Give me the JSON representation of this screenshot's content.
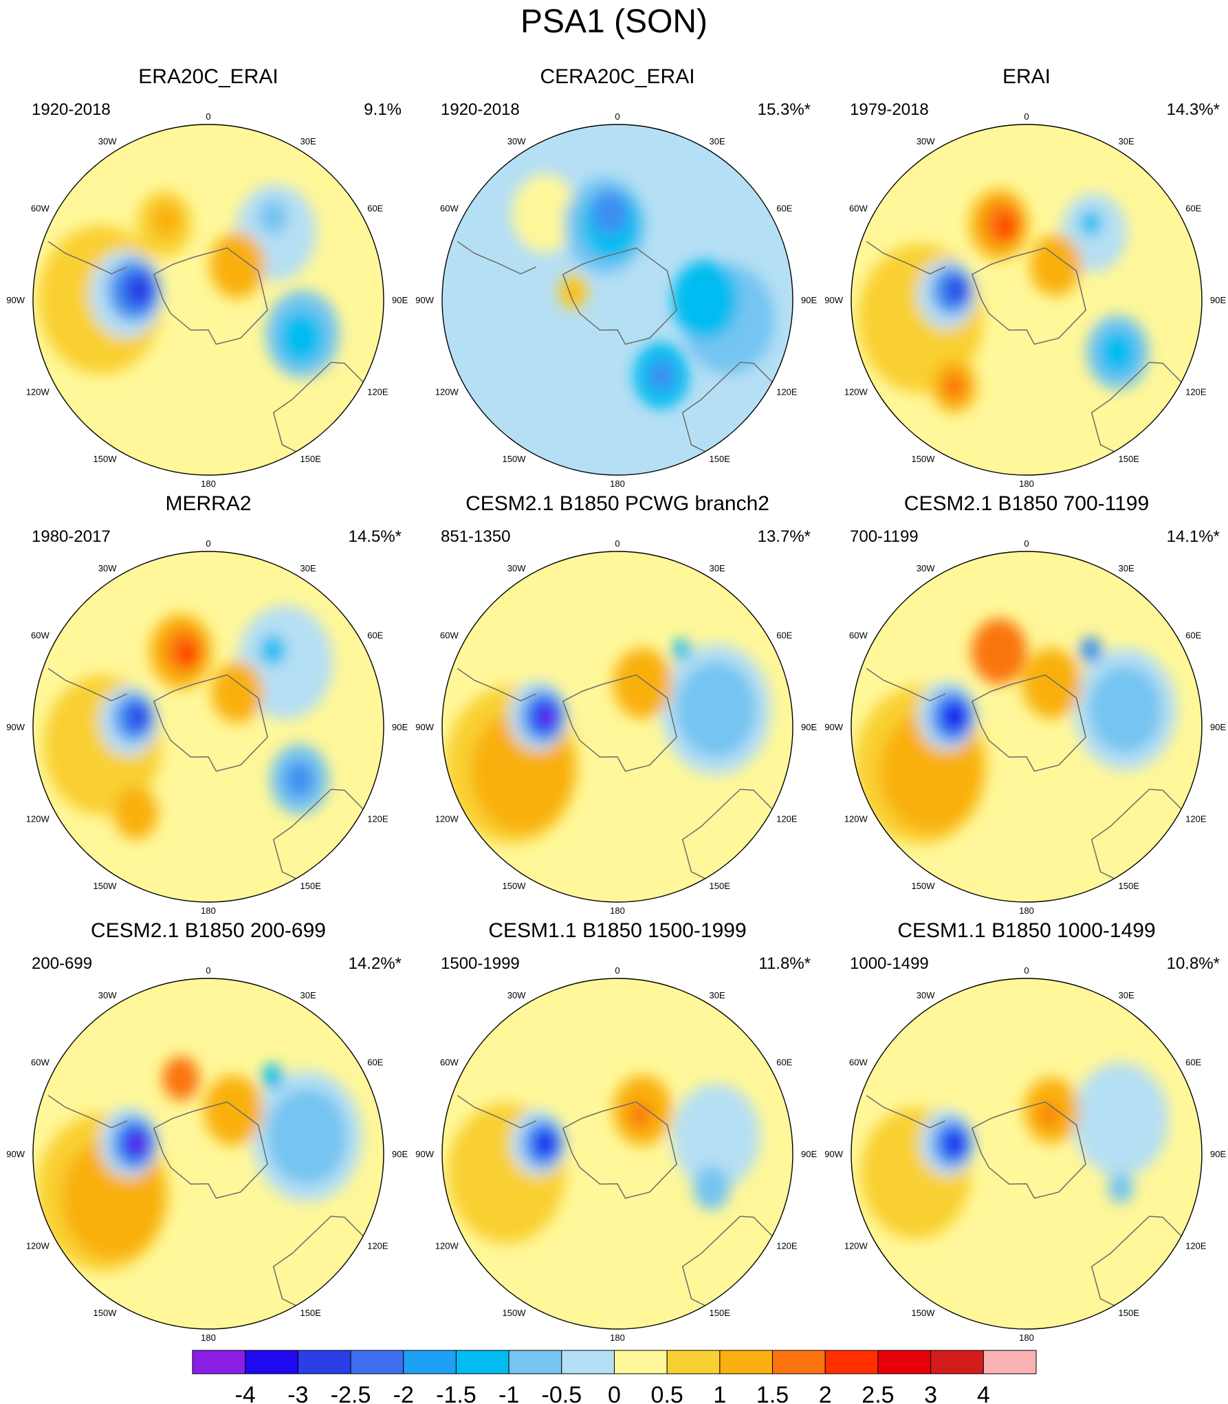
{
  "title": "PSA1 (SON)",
  "lon_labels": [
    "0",
    "30E",
    "60E",
    "90E",
    "120E",
    "150E",
    "180",
    "150W",
    "120W",
    "90W",
    "60W",
    "30W"
  ],
  "panels": [
    {
      "title": "ERA20C_ERAI",
      "period": "1920-2018",
      "pct": "9.1%",
      "bg": "#fff799",
      "features": [
        {
          "lat": -47,
          "lon": -90,
          "r": 0.34,
          "color": "#f9d033"
        },
        {
          "lat": -57,
          "lon": -86,
          "r": 0.2,
          "color": "#b5dff4"
        },
        {
          "lat": -60,
          "lon": -83,
          "r": 0.14,
          "color": "#3e8ef0"
        },
        {
          "lat": -62,
          "lon": -82,
          "r": 0.08,
          "color": "#2a3ee6"
        },
        {
          "lat": -55,
          "lon": -30,
          "r": 0.15,
          "color": "#f9d033"
        },
        {
          "lat": -54,
          "lon": -28,
          "r": 0.08,
          "color": "#f9b010"
        },
        {
          "lat": -52,
          "lon": 45,
          "r": 0.22,
          "color": "#b5dff4"
        },
        {
          "lat": -48,
          "lon": 38,
          "r": 0.08,
          "color": "#75c4f1"
        },
        {
          "lat": -50,
          "lon": 110,
          "r": 0.2,
          "color": "#75c4f1"
        },
        {
          "lat": -50,
          "lon": 112,
          "r": 0.12,
          "color": "#00bcf0"
        },
        {
          "lat": -72,
          "lon": 40,
          "r": 0.15,
          "color": "#f9b010"
        }
      ]
    },
    {
      "title": "CERA20C_ERAI",
      "period": "1920-2018",
      "pct": "15.3%*",
      "bg": "#b5dff4",
      "features": [
        {
          "lat": -45,
          "lon": -40,
          "r": 0.18,
          "color": "#fff799"
        },
        {
          "lat": -45,
          "lon": 100,
          "r": 0.25,
          "color": "#75c4f1"
        },
        {
          "lat": -60,
          "lon": -10,
          "r": 0.22,
          "color": "#75c4f1"
        },
        {
          "lat": -60,
          "lon": -5,
          "r": 0.16,
          "color": "#00bcf0"
        },
        {
          "lat": -55,
          "lon": -5,
          "r": 0.1,
          "color": "#3e8ef0"
        },
        {
          "lat": -55,
          "lon": 90,
          "r": 0.18,
          "color": "#00bcf0"
        },
        {
          "lat": -55,
          "lon": 150,
          "r": 0.15,
          "color": "#00bcf0"
        },
        {
          "lat": -55,
          "lon": 150,
          "r": 0.07,
          "color": "#3e8ef0"
        },
        {
          "lat": -72,
          "lon": -80,
          "r": 0.08,
          "color": "#f9d033"
        },
        {
          "lat": -72,
          "lon": -80,
          "r": 0.04,
          "color": "#f9b010"
        }
      ]
    },
    {
      "title": "ERAI",
      "period": "1979-2018",
      "pct": "14.3%*",
      "bg": "#fff799",
      "features": [
        {
          "lat": -47,
          "lon": -100,
          "r": 0.34,
          "color": "#f9d033"
        },
        {
          "lat": -45,
          "lon": -140,
          "r": 0.12,
          "color": "#f9b010"
        },
        {
          "lat": -45,
          "lon": -140,
          "r": 0.06,
          "color": "#fb7410"
        },
        {
          "lat": -58,
          "lon": -20,
          "r": 0.16,
          "color": "#f9b010"
        },
        {
          "lat": -58,
          "lon": -18,
          "r": 0.1,
          "color": "#fb7410"
        },
        {
          "lat": -60,
          "lon": -15,
          "r": 0.05,
          "color": "#ff2f00"
        },
        {
          "lat": -58,
          "lon": -86,
          "r": 0.16,
          "color": "#b5dff4"
        },
        {
          "lat": -60,
          "lon": -83,
          "r": 0.11,
          "color": "#3e8ef0"
        },
        {
          "lat": -62,
          "lon": -82,
          "r": 0.06,
          "color": "#2a3ee6"
        },
        {
          "lat": -52,
          "lon": 45,
          "r": 0.18,
          "color": "#b5dff4"
        },
        {
          "lat": -50,
          "lon": 40,
          "r": 0.06,
          "color": "#00bcf0"
        },
        {
          "lat": -48,
          "lon": 120,
          "r": 0.17,
          "color": "#75c4f1"
        },
        {
          "lat": -48,
          "lon": 120,
          "r": 0.1,
          "color": "#00bcf0"
        },
        {
          "lat": -72,
          "lon": 40,
          "r": 0.14,
          "color": "#f9b010"
        }
      ]
    },
    {
      "title": "MERRA2",
      "period": "1980-2017",
      "pct": "14.5%*",
      "bg": "#fff799",
      "features": [
        {
          "lat": -47,
          "lon": -100,
          "r": 0.32,
          "color": "#f9d033"
        },
        {
          "lat": -45,
          "lon": -140,
          "r": 0.12,
          "color": "#f9b010"
        },
        {
          "lat": -58,
          "lon": -20,
          "r": 0.17,
          "color": "#f9b010"
        },
        {
          "lat": -58,
          "lon": -18,
          "r": 0.1,
          "color": "#fb7410"
        },
        {
          "lat": -60,
          "lon": -15,
          "r": 0.05,
          "color": "#ff2f00"
        },
        {
          "lat": -58,
          "lon": -86,
          "r": 0.16,
          "color": "#b5dff4"
        },
        {
          "lat": -60,
          "lon": -83,
          "r": 0.11,
          "color": "#3e8ef0"
        },
        {
          "lat": -62,
          "lon": -82,
          "r": 0.06,
          "color": "#2a3ee6"
        },
        {
          "lat": -50,
          "lon": 50,
          "r": 0.26,
          "color": "#b5dff4"
        },
        {
          "lat": -50,
          "lon": 40,
          "r": 0.07,
          "color": "#00bcf0"
        },
        {
          "lat": -48,
          "lon": 120,
          "r": 0.16,
          "color": "#75c4f1"
        },
        {
          "lat": -48,
          "lon": 120,
          "r": 0.08,
          "color": "#3e8ef0"
        },
        {
          "lat": -72,
          "lon": 40,
          "r": 0.14,
          "color": "#f9b010"
        }
      ]
    },
    {
      "title": "CESM2.1 B1850 PCWG branch2",
      "period": "851-1350",
      "pct": "13.7%*",
      "bg": "#fff799",
      "features": [
        {
          "lat": -45,
          "lon": -110,
          "r": 0.36,
          "color": "#f9d033"
        },
        {
          "lat": -48,
          "lon": -115,
          "r": 0.28,
          "color": "#f9b010"
        },
        {
          "lat": -58,
          "lon": -82,
          "r": 0.16,
          "color": "#b5dff4"
        },
        {
          "lat": -60,
          "lon": -82,
          "r": 0.12,
          "color": "#3e8ef0"
        },
        {
          "lat": -61,
          "lon": -82,
          "r": 0.07,
          "color": "#1f09f0"
        },
        {
          "lat": -62,
          "lon": -82,
          "r": 0.03,
          "color": "#8b1fe6"
        },
        {
          "lat": -50,
          "lon": 80,
          "r": 0.3,
          "color": "#b5dff4"
        },
        {
          "lat": -50,
          "lon": 80,
          "r": 0.22,
          "color": "#75c4f1"
        },
        {
          "lat": -50,
          "lon": 40,
          "r": 0.05,
          "color": "#00bcf0"
        },
        {
          "lat": -70,
          "lon": 30,
          "r": 0.16,
          "color": "#f9b010"
        }
      ]
    },
    {
      "title": "CESM2.1 B1850 700-1199",
      "period": "700-1199",
      "pct": "14.1%*",
      "bg": "#fff799",
      "features": [
        {
          "lat": -45,
          "lon": -110,
          "r": 0.36,
          "color": "#f9d033"
        },
        {
          "lat": -48,
          "lon": -115,
          "r": 0.28,
          "color": "#f9b010"
        },
        {
          "lat": -58,
          "lon": -20,
          "r": 0.15,
          "color": "#fb7410"
        },
        {
          "lat": -58,
          "lon": -82,
          "r": 0.16,
          "color": "#b5dff4"
        },
        {
          "lat": -60,
          "lon": -82,
          "r": 0.12,
          "color": "#3e8ef0"
        },
        {
          "lat": -61,
          "lon": -82,
          "r": 0.07,
          "color": "#1f09f0"
        },
        {
          "lat": -50,
          "lon": 80,
          "r": 0.28,
          "color": "#b5dff4"
        },
        {
          "lat": -50,
          "lon": 80,
          "r": 0.2,
          "color": "#75c4f1"
        },
        {
          "lat": -50,
          "lon": 40,
          "r": 0.06,
          "color": "#3e8ef0"
        },
        {
          "lat": -70,
          "lon": 30,
          "r": 0.16,
          "color": "#f9b010"
        }
      ]
    },
    {
      "title": "CESM2.1 B1850 200-699",
      "period": "200-699",
      "pct": "14.2%*",
      "bg": "#fff799",
      "features": [
        {
          "lat": -45,
          "lon": -110,
          "r": 0.36,
          "color": "#f9d033"
        },
        {
          "lat": -48,
          "lon": -115,
          "r": 0.28,
          "color": "#f9b010"
        },
        {
          "lat": -58,
          "lon": -20,
          "r": 0.1,
          "color": "#fb7410"
        },
        {
          "lat": -58,
          "lon": -82,
          "r": 0.16,
          "color": "#b5dff4"
        },
        {
          "lat": -60,
          "lon": -82,
          "r": 0.12,
          "color": "#3e8ef0"
        },
        {
          "lat": -61,
          "lon": -82,
          "r": 0.07,
          "color": "#1f09f0"
        },
        {
          "lat": -62,
          "lon": -82,
          "r": 0.03,
          "color": "#8b1fe6"
        },
        {
          "lat": -50,
          "lon": 80,
          "r": 0.3,
          "color": "#b5dff4"
        },
        {
          "lat": -50,
          "lon": 80,
          "r": 0.22,
          "color": "#75c4f1"
        },
        {
          "lat": -50,
          "lon": 40,
          "r": 0.06,
          "color": "#00bcf0"
        },
        {
          "lat": -70,
          "lon": 30,
          "r": 0.16,
          "color": "#f9b010"
        }
      ]
    },
    {
      "title": "CESM1.1 B1850 1500-1999",
      "period": "1500-1999",
      "pct": "11.8%*",
      "bg": "#fff799",
      "features": [
        {
          "lat": -45,
          "lon": -100,
          "r": 0.32,
          "color": "#f9d033"
        },
        {
          "lat": -58,
          "lon": -82,
          "r": 0.15,
          "color": "#b5dff4"
        },
        {
          "lat": -60,
          "lon": -82,
          "r": 0.11,
          "color": "#3e8ef0"
        },
        {
          "lat": -61,
          "lon": -82,
          "r": 0.06,
          "color": "#1f09f0"
        },
        {
          "lat": -50,
          "lon": 80,
          "r": 0.24,
          "color": "#b5dff4"
        },
        {
          "lat": -50,
          "lon": 110,
          "r": 0.1,
          "color": "#75c4f1"
        },
        {
          "lat": -70,
          "lon": 30,
          "r": 0.16,
          "color": "#f9b010"
        },
        {
          "lat": -72,
          "lon": 30,
          "r": 0.06,
          "color": "#fb7410"
        }
      ]
    },
    {
      "title": "CESM1.1 B1850 1000-1499",
      "period": "1000-1499",
      "pct": "10.8%*",
      "bg": "#fff799",
      "features": [
        {
          "lat": -45,
          "lon": -100,
          "r": 0.3,
          "color": "#f9d033"
        },
        {
          "lat": -58,
          "lon": -82,
          "r": 0.15,
          "color": "#b5dff4"
        },
        {
          "lat": -60,
          "lon": -82,
          "r": 0.11,
          "color": "#3e8ef0"
        },
        {
          "lat": -61,
          "lon": -82,
          "r": 0.06,
          "color": "#1f09f0"
        },
        {
          "lat": -50,
          "lon": 70,
          "r": 0.26,
          "color": "#b5dff4"
        },
        {
          "lat": -50,
          "lon": 110,
          "r": 0.07,
          "color": "#75c4f1"
        },
        {
          "lat": -70,
          "lon": 30,
          "r": 0.15,
          "color": "#f9b010"
        },
        {
          "lat": -72,
          "lon": 30,
          "r": 0.05,
          "color": "#fb7410"
        }
      ]
    }
  ],
  "chart_data": {
    "type": "heatmap",
    "title": "PSA1 (SON)",
    "projection": "south polar stereographic",
    "colorbar": {
      "levels": [
        "-4",
        "-3",
        "-2.5",
        "-2",
        "-1.5",
        "-1",
        "-0.5",
        "0",
        "0.5",
        "1",
        "1.5",
        "2",
        "2.5",
        "3",
        "4"
      ],
      "colors": [
        "#8b1fe6",
        "#1f09f0",
        "#2a3ee6",
        "#3e6ff0",
        "#1ea0f5",
        "#00bcf0",
        "#75c4f1",
        "#b5dff4",
        "#fff799",
        "#f9d033",
        "#f9b010",
        "#fb7410",
        "#ff2f00",
        "#e6000a",
        "#d41c1c",
        "#fbb2b2"
      ]
    },
    "panels": [
      {
        "title": "ERA20C_ERAI",
        "period": "1920-2018",
        "variance_explained": "9.1%"
      },
      {
        "title": "CERA20C_ERAI",
        "period": "1920-2018",
        "variance_explained": "15.3%*"
      },
      {
        "title": "ERAI",
        "period": "1979-2018",
        "variance_explained": "14.3%*"
      },
      {
        "title": "MERRA2",
        "period": "1980-2017",
        "variance_explained": "14.5%*"
      },
      {
        "title": "CESM2.1 B1850 PCWG branch2",
        "period": "851-1350",
        "variance_explained": "13.7%*"
      },
      {
        "title": "CESM2.1 B1850 700-1199",
        "period": "700-1199",
        "variance_explained": "14.1%*"
      },
      {
        "title": "CESM2.1 B1850 200-699",
        "period": "200-699",
        "variance_explained": "14.2%*"
      },
      {
        "title": "CESM1.1 B1850 1500-1999",
        "period": "1500-1999",
        "variance_explained": "11.8%*"
      },
      {
        "title": "CESM1.1 B1850 1000-1499",
        "period": "1000-1499",
        "variance_explained": "10.8%*"
      }
    ]
  }
}
